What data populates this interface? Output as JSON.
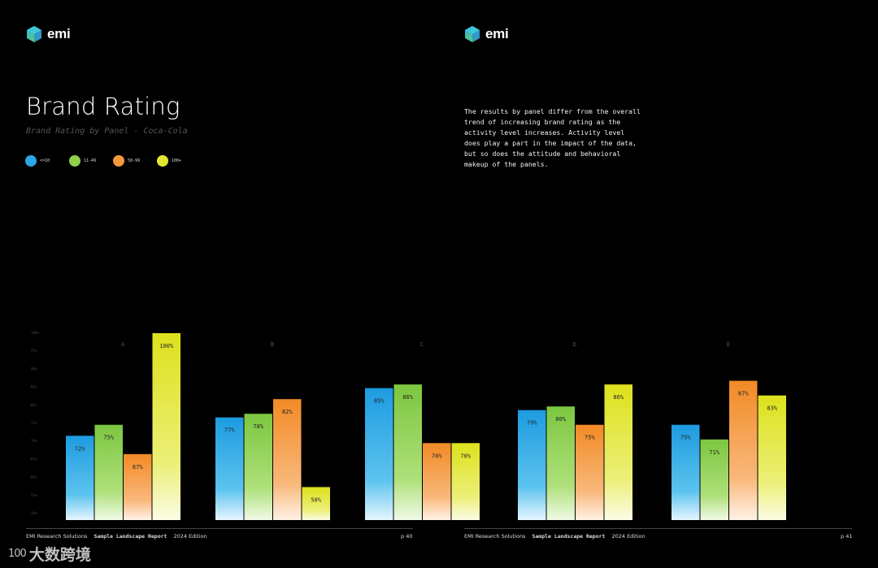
{
  "brand": {
    "name": "emi"
  },
  "header": {
    "title": "Brand Rating",
    "subtitle": "Brand Rating by Panel - Coca-Cola"
  },
  "description": "The results by panel differ from the overall trend of increasing brand rating as the activity level increases. Activity level does play a part in the impact of the data, but so does the attitude and behavioral makeup of the panels.",
  "colors": {
    "s1": "#2aa7e6",
    "s2": "#8fcf4c",
    "s3": "#f59a3c",
    "s4": "#e2e632",
    "background": "#000000"
  },
  "chart_data": {
    "type": "bar",
    "title": "Brand Rating",
    "subtitle": "Brand Rating by Panel - Coca-Cola",
    "categories": [
      "A",
      "B",
      "C",
      "D",
      "E"
    ],
    "series": [
      {
        "name": "<=10",
        "values": [
          72,
          77,
          85,
          79,
          75
        ]
      },
      {
        "name": "11-49",
        "values": [
          75,
          78,
          86,
          80,
          71
        ]
      },
      {
        "name": "50-99",
        "values": [
          67,
          82,
          70,
          75,
          87
        ]
      },
      {
        "name": "100+",
        "values": [
          100,
          58,
          70,
          86,
          83
        ]
      }
    ],
    "value_labels": [
      [
        "72%",
        "75%",
        "67%",
        "100%"
      ],
      [
        "77%",
        "78%",
        "82%",
        "58%"
      ],
      [
        "85%",
        "86%",
        "70%",
        "70%"
      ],
      [
        "79%",
        "80%",
        "75%",
        "86%"
      ],
      [
        "75%",
        "71%",
        "87%",
        "83%"
      ]
    ],
    "y_ticks": [
      "100%",
      "95%",
      "90%",
      "85%",
      "80%",
      "75%",
      "70%",
      "65%",
      "60%",
      "55%",
      "50%"
    ],
    "ylim": [
      49,
      100
    ],
    "legend": "top-left",
    "grid": false
  },
  "footer": {
    "left": {
      "company": "EMI Research Solutions",
      "report": "Sample Landscape Report",
      "edition": "2024 Edition",
      "page": "p 40"
    },
    "right": {
      "company": "EMI Research Solutions",
      "report": "Sample Landscape Report",
      "edition": "2024 Edition",
      "page": "p 41"
    }
  },
  "watermark": {
    "mark": "100",
    "text": "大数跨境"
  }
}
